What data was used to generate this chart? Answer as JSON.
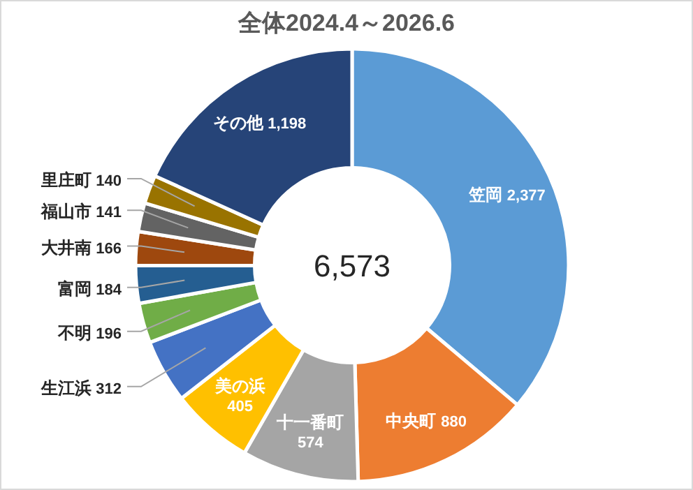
{
  "chart_data": {
    "type": "donut",
    "title": "全体2024.4～2026.6",
    "categories": [
      "笠岡",
      "中央町",
      "十一番町",
      "美の浜",
      "生江浜",
      "不明",
      "富岡",
      "大井南",
      "福山市",
      "里庄町",
      "その他"
    ],
    "values": [
      2377,
      880,
      574,
      405,
      312,
      196,
      184,
      166,
      141,
      140,
      1198
    ],
    "value_labels": [
      "2,377",
      "880",
      "574",
      "405",
      "312",
      "196",
      "184",
      "166",
      "141",
      "140",
      "1,198"
    ],
    "colors": [
      "#5b9bd5",
      "#ed7d31",
      "#a5a5a5",
      "#ffc000",
      "#4472c4",
      "#70ad47",
      "#255e91",
      "#9e480e",
      "#636363",
      "#997300",
      "#264478"
    ],
    "annotations": [
      "6,573"
    ]
  }
}
